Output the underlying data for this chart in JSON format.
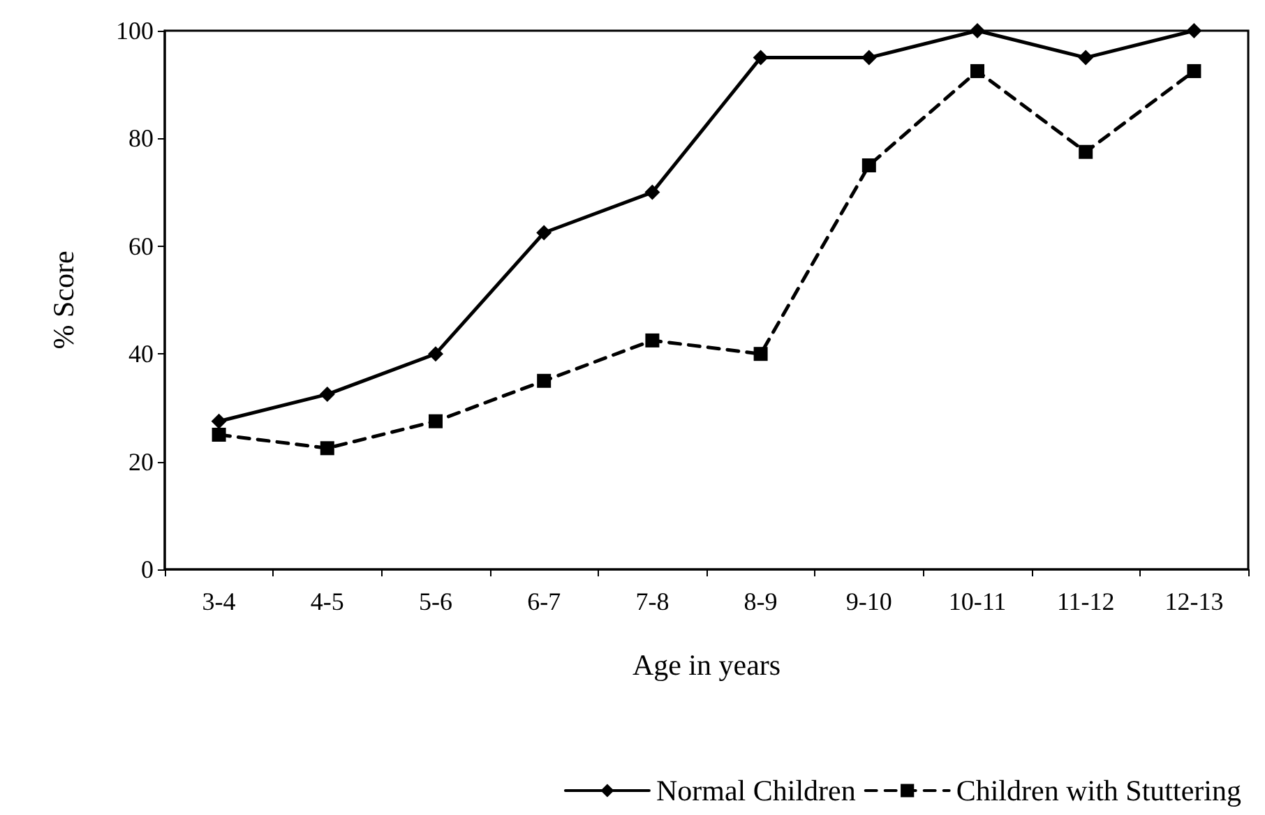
{
  "chart_data": {
    "type": "line",
    "xlabel": "Age in years",
    "ylabel": "% Score",
    "categories": [
      "3-4",
      "4-5",
      "5-6",
      "6-7",
      "7-8",
      "8-9",
      "9-10",
      "10-11",
      "11-12",
      "12-13"
    ],
    "series": [
      {
        "name": "Normal Children",
        "color": "#000000",
        "marker": "diamond",
        "line_style": "solid",
        "values": [
          27.5,
          32.5,
          40,
          62.5,
          70,
          95,
          95,
          100,
          95,
          100
        ]
      },
      {
        "name": "Children with Stuttering",
        "color": "#000000",
        "marker": "square",
        "line_style": "dashed",
        "values": [
          25,
          22.5,
          27.5,
          35,
          42.5,
          40,
          75,
          92.5,
          77.5,
          92.5
        ]
      }
    ],
    "ylim": [
      0,
      100
    ],
    "yticks": [
      0,
      20,
      40,
      60,
      80,
      100
    ],
    "grid": false,
    "legend": "bottom"
  }
}
